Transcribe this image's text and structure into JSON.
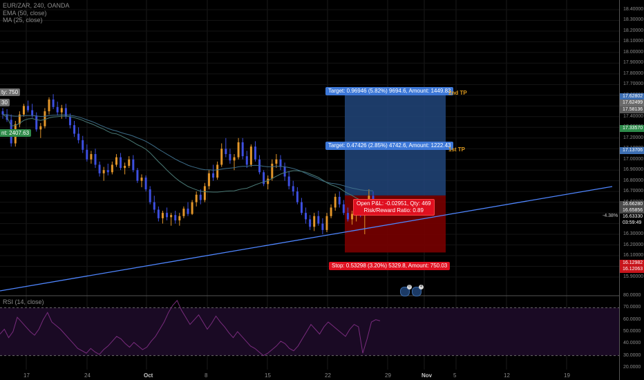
{
  "header": {
    "symbol_line": "EUR/ZAR, 240, OANDA",
    "ema_line": "EMA (50, close)",
    "ma_line": "MA (25, close)"
  },
  "left_flags": {
    "qty": "ty: 750",
    "open": "30",
    "amount": "nt: 2407.63"
  },
  "position": {
    "target2": "Target: 0.96946 (5.82%) 9694.6, Amount: 1449.83",
    "target1": "Target: 0.47426 (2.85%) 4742.6, Amount: 1222.43",
    "open_pl": "Open P&L: -0.02951, Qty: 469",
    "rr": "Risk/Reward Ratio: 0.89",
    "stop": "Stop: 0.53298 (3.20%) 5329.8, Amount: 750.03",
    "tp2_label": "2nd TP",
    "tp1_label": "1st TP"
  },
  "markers": [
    "0",
    "4"
  ],
  "price_axis": {
    "labels": [
      "18.40000",
      "18.30000",
      "18.20000",
      "18.10000",
      "18.00000",
      "17.90000",
      "17.80000",
      "17.70000",
      "17.60000",
      "17.50000",
      "17.40000",
      "17.30000",
      "17.20000",
      "17.10000",
      "17.00000",
      "16.90000",
      "16.80000",
      "16.70000",
      "16.60000",
      "16.50000",
      "16.40000",
      "16.30000",
      "16.20000",
      "16.10000",
      "16.00000",
      "15.90000"
    ],
    "tags": [
      {
        "text": "17.62802",
        "color": "#3d6fb3"
      },
      {
        "text": "17.62499",
        "color": "#6a6a6a"
      },
      {
        "text": "17.58136",
        "color": "#5a5a5a"
      },
      {
        "text": "17.33570",
        "color": "#2d8a4a"
      },
      {
        "text": "17.13706",
        "color": "#3d6fb3"
      },
      {
        "text": "16.66280",
        "color": "#4a4a4a"
      },
      {
        "text": "16.65856",
        "color": "#4a4a4a"
      },
      {
        "text": "16.63330",
        "color": "#000000"
      },
      {
        "text": "03:59:49",
        "color": "#000000"
      },
      {
        "text": "16.12982",
        "color": "#c8141b"
      },
      {
        "text": "16.12063",
        "color": "#c8141b"
      }
    ],
    "trend_pct": "-4.38%"
  },
  "rsi_axis": [
    "80.0000",
    "70.0000",
    "60.0000",
    "50.0000",
    "40.0000",
    "30.0000",
    "20.0000"
  ],
  "time_axis": [
    {
      "text": "17",
      "bold": false
    },
    {
      "text": "24",
      "bold": false
    },
    {
      "text": "Oct",
      "bold": true
    },
    {
      "text": "8",
      "bold": false
    },
    {
      "text": "15",
      "bold": false
    },
    {
      "text": "22",
      "bold": false
    },
    {
      "text": "29",
      "bold": false
    },
    {
      "text": "Nov",
      "bold": true
    },
    {
      "text": "5",
      "bold": false
    },
    {
      "text": "12",
      "bold": false
    },
    {
      "text": "19",
      "bold": false
    }
  ],
  "legend_rsi": "RSI (14, close)",
  "colors": {
    "up": "#e3962a",
    "down": "#3d4fe0",
    "ema": "#3e6e8a",
    "ma": "#4a7a76",
    "trend": "#4f86ff",
    "rsi": "#7a2c7e",
    "rsi_band": "#1a0a24",
    "profit": "#21457a",
    "loss": "#780000"
  },
  "chart_data": [
    {
      "type": "candlestick",
      "title": "EUR/ZAR, 240, OANDA",
      "ylim": [
        15.85,
        18.5
      ],
      "x": [
        "17",
        "24",
        "Oct",
        "8",
        "15",
        "22",
        "29",
        "Nov",
        "5",
        "12",
        "19"
      ],
      "series": [
        {
          "name": "EMA (50, close)"
        },
        {
          "name": "MA (25, close)"
        }
      ],
      "values": [
        [
          17.45,
          17.48,
          17.38,
          17.42
        ],
        [
          17.42,
          17.47,
          17.35,
          17.37
        ],
        [
          17.37,
          17.42,
          17.12,
          17.15
        ],
        [
          17.15,
          17.36,
          17.12,
          17.33
        ],
        [
          17.33,
          17.45,
          17.3,
          17.42
        ],
        [
          17.42,
          17.52,
          17.4,
          17.5
        ],
        [
          17.5,
          17.55,
          17.44,
          17.46
        ],
        [
          17.46,
          17.52,
          17.39,
          17.41
        ],
        [
          17.41,
          17.44,
          17.26,
          17.28
        ],
        [
          17.28,
          17.34,
          17.2,
          17.31
        ],
        [
          17.31,
          17.48,
          17.29,
          17.45
        ],
        [
          17.45,
          17.58,
          17.42,
          17.56
        ],
        [
          17.56,
          17.61,
          17.47,
          17.49
        ],
        [
          17.49,
          17.54,
          17.41,
          17.44
        ],
        [
          17.44,
          17.51,
          17.38,
          17.48
        ],
        [
          17.48,
          17.52,
          17.38,
          17.4
        ],
        [
          17.4,
          17.43,
          17.29,
          17.32
        ],
        [
          17.32,
          17.36,
          17.21,
          17.24
        ],
        [
          17.24,
          17.3,
          17.15,
          17.18
        ],
        [
          17.18,
          17.22,
          17.06,
          17.09
        ],
        [
          17.09,
          17.14,
          16.98,
          17.0
        ],
        [
          17.0,
          17.08,
          16.96,
          17.05
        ],
        [
          17.05,
          17.1,
          16.92,
          16.95
        ],
        [
          16.95,
          16.98,
          16.84,
          16.87
        ],
        [
          16.87,
          16.93,
          16.8,
          16.9
        ],
        [
          16.9,
          16.96,
          16.85,
          16.88
        ],
        [
          16.88,
          16.98,
          16.86,
          16.95
        ],
        [
          16.95,
          17.05,
          16.93,
          17.02
        ],
        [
          17.02,
          17.06,
          16.9,
          16.92
        ],
        [
          16.92,
          16.97,
          16.86,
          16.94
        ],
        [
          16.94,
          17.03,
          16.92,
          17.0
        ],
        [
          17.0,
          17.04,
          16.88,
          16.9
        ],
        [
          16.9,
          16.92,
          16.78,
          16.8
        ],
        [
          16.8,
          16.86,
          16.74,
          16.83
        ],
        [
          16.83,
          16.85,
          16.7,
          16.72
        ],
        [
          16.72,
          16.75,
          16.58,
          16.6
        ],
        [
          16.6,
          16.66,
          16.5,
          16.53
        ],
        [
          16.53,
          16.56,
          16.42,
          16.45
        ],
        [
          16.45,
          16.52,
          16.4,
          16.5
        ],
        [
          16.5,
          16.55,
          16.43,
          16.46
        ],
        [
          16.46,
          16.5,
          16.38,
          16.48
        ],
        [
          16.48,
          16.52,
          16.4,
          16.43
        ],
        [
          16.43,
          16.5,
          16.38,
          16.47
        ],
        [
          16.47,
          16.56,
          16.45,
          16.54
        ],
        [
          16.54,
          16.6,
          16.47,
          16.49
        ],
        [
          16.49,
          16.62,
          16.48,
          16.6
        ],
        [
          16.6,
          16.7,
          16.56,
          16.67
        ],
        [
          16.67,
          16.72,
          16.58,
          16.62
        ],
        [
          16.62,
          16.78,
          16.6,
          16.75
        ],
        [
          16.75,
          16.9,
          16.72,
          16.87
        ],
        [
          16.87,
          16.95,
          16.8,
          16.83
        ],
        [
          16.83,
          16.98,
          16.81,
          16.95
        ],
        [
          16.95,
          17.15,
          16.93,
          17.1
        ],
        [
          17.1,
          17.2,
          17.02,
          17.05
        ],
        [
          17.05,
          17.1,
          16.96,
          16.99
        ],
        [
          16.99,
          17.05,
          16.9,
          17.02
        ],
        [
          17.02,
          17.2,
          17.0,
          17.16
        ],
        [
          17.16,
          17.2,
          17.0,
          17.03
        ],
        [
          17.03,
          17.08,
          16.92,
          16.95
        ],
        [
          16.95,
          17.14,
          16.93,
          17.12
        ],
        [
          17.12,
          17.17,
          16.98,
          17.0
        ],
        [
          17.0,
          17.04,
          16.86,
          16.88
        ],
        [
          16.88,
          16.9,
          16.75,
          16.77
        ],
        [
          16.77,
          16.85,
          16.72,
          16.82
        ],
        [
          16.82,
          17.0,
          16.8,
          16.96
        ],
        [
          16.96,
          17.05,
          16.92,
          17.0
        ],
        [
          17.0,
          17.04,
          16.9,
          16.93
        ],
        [
          16.93,
          16.97,
          16.8,
          16.84
        ],
        [
          16.84,
          16.89,
          16.72,
          16.75
        ],
        [
          16.75,
          16.8,
          16.66,
          16.7
        ],
        [
          16.7,
          16.74,
          16.58,
          16.6
        ],
        [
          16.6,
          16.64,
          16.48,
          16.5
        ],
        [
          16.5,
          16.55,
          16.4,
          16.44
        ],
        [
          16.44,
          16.48,
          16.34,
          16.37
        ],
        [
          16.37,
          16.5,
          16.33,
          16.47
        ],
        [
          16.47,
          16.52,
          16.38,
          16.4
        ],
        [
          16.4,
          16.45,
          16.3,
          16.34
        ],
        [
          16.34,
          16.5,
          16.32,
          16.47
        ],
        [
          16.47,
          16.58,
          16.45,
          16.55
        ],
        [
          16.55,
          16.68,
          16.52,
          16.65
        ],
        [
          16.65,
          16.7,
          16.55,
          16.58
        ],
        [
          16.58,
          16.62,
          16.48,
          16.5
        ],
        [
          16.5,
          16.55,
          16.42,
          16.44
        ],
        [
          16.44,
          16.52,
          16.39,
          16.49
        ],
        [
          16.49,
          16.56,
          16.42,
          16.53
        ],
        [
          16.53,
          16.58,
          16.46,
          16.5
        ],
        [
          16.5,
          16.62,
          16.3,
          16.6
        ],
        [
          16.6,
          16.72,
          16.55,
          16.66
        ],
        [
          16.66,
          16.7,
          16.6,
          16.63
        ]
      ]
    },
    {
      "type": "line",
      "title": "RSI (14, close)",
      "ylim": [
        20,
        80
      ],
      "series": [
        {
          "name": "RSI (14, close)",
          "values": [
            48,
            52,
            45,
            50,
            62,
            58,
            54,
            50,
            47,
            52,
            60,
            66,
            58,
            55,
            52,
            48,
            44,
            40,
            36,
            34,
            32,
            36,
            33,
            31,
            35,
            38,
            42,
            46,
            44,
            40,
            37,
            41,
            38,
            35,
            37,
            42,
            46,
            52,
            58,
            66,
            72,
            76,
            68,
            62,
            56,
            60,
            64,
            58,
            52,
            57,
            63,
            58,
            54,
            49,
            45,
            50,
            46,
            42,
            38,
            36,
            33,
            30,
            32,
            35,
            38,
            42,
            40,
            36,
            34,
            38,
            44,
            50,
            56,
            52,
            48,
            54,
            58,
            55,
            52,
            49,
            46,
            52,
            56,
            54,
            32,
            44,
            58,
            60,
            59
          ]
        }
      ]
    }
  ]
}
